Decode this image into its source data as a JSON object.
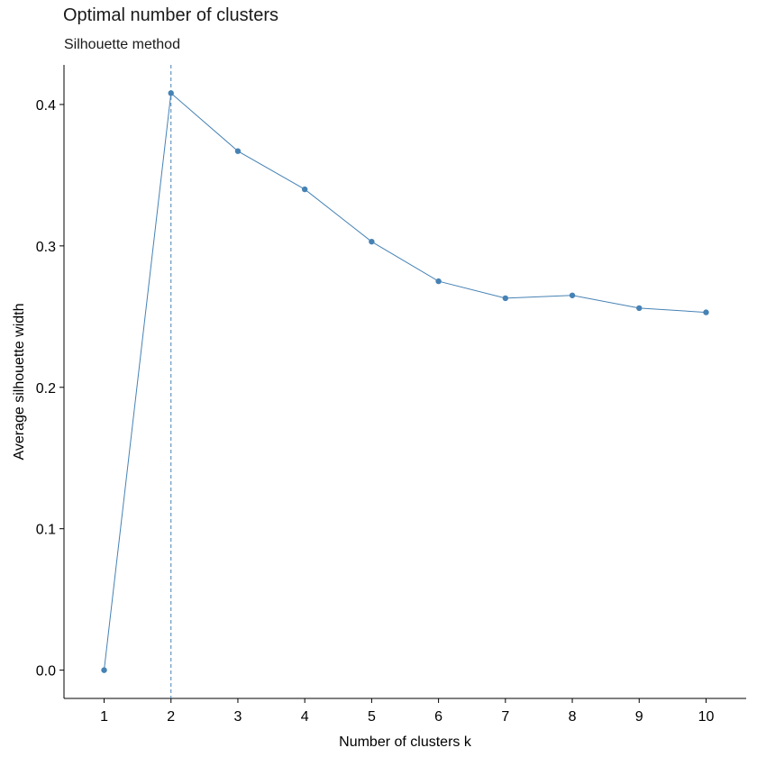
{
  "chart_data": {
    "type": "line",
    "title": "Optimal number of clusters",
    "subtitle": "Silhouette method",
    "xlabel": "Number of clusters k",
    "ylabel": "Average silhouette width",
    "x": [
      1,
      2,
      3,
      4,
      5,
      6,
      7,
      8,
      9,
      10
    ],
    "x_tick_labels": [
      "1",
      "2",
      "3",
      "4",
      "5",
      "6",
      "7",
      "8",
      "9",
      "10"
    ],
    "series": [
      {
        "values": [
          0.0,
          0.408,
          0.367,
          0.34,
          0.303,
          0.275,
          0.263,
          0.265,
          0.256,
          0.253
        ],
        "color": "#4682B4"
      }
    ],
    "y_ticks": [
      0.0,
      0.1,
      0.2,
      0.3,
      0.4
    ],
    "y_tick_labels": [
      "0.0",
      "0.1",
      "0.2",
      "0.3",
      "0.4"
    ],
    "xlim": [
      0.4,
      10.6
    ],
    "ylim": [
      -0.02,
      0.428
    ],
    "optimal_k": 2,
    "optimal_line_style": "dashed",
    "grid": false,
    "legend": "none"
  }
}
